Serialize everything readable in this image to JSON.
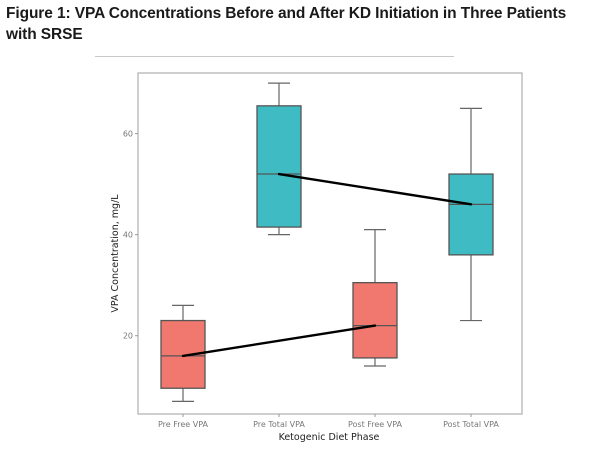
{
  "figure": {
    "title": "Figure 1: VPA Concentrations Before and After KD Initiation in Three Patients with SRSE"
  },
  "colors": {
    "free": "#F1786E",
    "total": "#3FBCC3",
    "box_stroke": "#555555",
    "whisker": "#666666",
    "median_line": "#000000",
    "frame": "#b5b5b5"
  },
  "chart_data": {
    "type": "box",
    "title": "Figure 1: VPA Concentrations Before and After KD Initiation in Three Patients with SRSE",
    "xlabel": "Ketogenic Diet Phase",
    "ylabel": "VPA Concentration, mg/L",
    "categories": [
      "Pre Free VPA",
      "Pre Total VPA",
      "Post Free VPA",
      "Post Total VPA"
    ],
    "y_ticks": [
      20,
      40,
      60
    ],
    "ylim": [
      4.5,
      72
    ],
    "grid": false,
    "legend": "none",
    "boxes": [
      {
        "category": "Pre Free VPA",
        "group": "free",
        "min": 7,
        "q1": 9.6,
        "median": 16,
        "q3": 23,
        "max": 26
      },
      {
        "category": "Pre Total VPA",
        "group": "total",
        "min": 40,
        "q1": 41.5,
        "median": 52,
        "q3": 65.5,
        "max": 70
      },
      {
        "category": "Post Free VPA",
        "group": "free",
        "min": 14,
        "q1": 15.6,
        "median": 22,
        "q3": 30.5,
        "max": 41
      },
      {
        "category": "Post Total VPA",
        "group": "total",
        "min": 23,
        "q1": 36,
        "median": 46,
        "q3": 52,
        "max": 65
      }
    ],
    "median_connectors": [
      {
        "from": "Pre Free VPA",
        "to": "Post Free VPA",
        "values": [
          16,
          22
        ]
      },
      {
        "from": "Pre Total VPA",
        "to": "Post Total VPA",
        "values": [
          52,
          46
        ]
      }
    ]
  }
}
